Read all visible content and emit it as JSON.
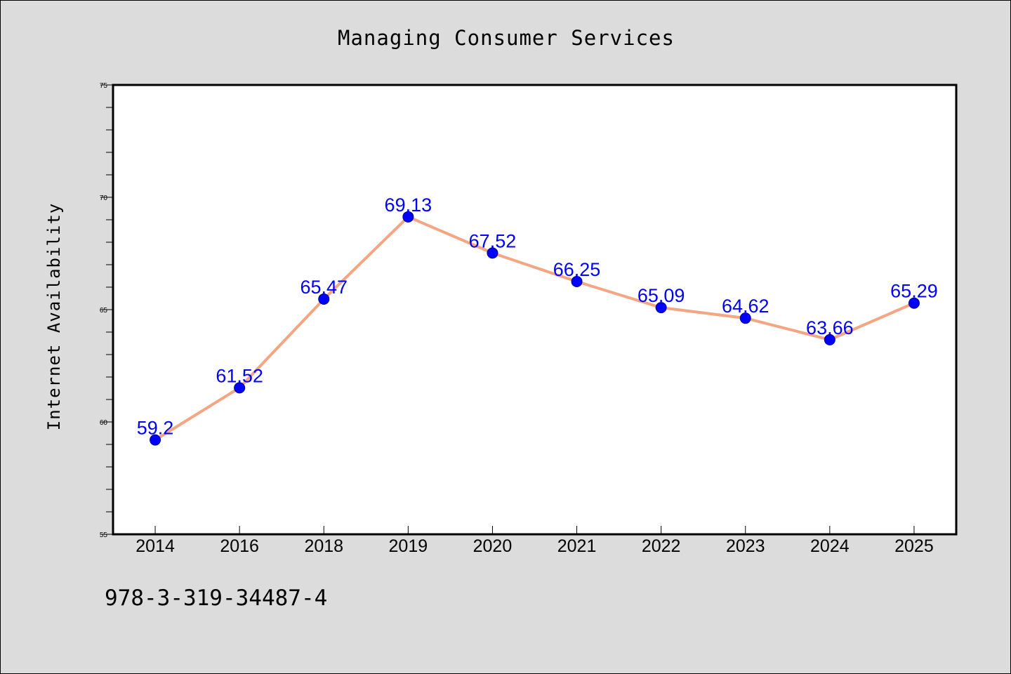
{
  "chart_data": {
    "type": "line",
    "title": "Managing Consumer Services",
    "xlabel": "",
    "ylabel": "Internet Availability",
    "categories": [
      "2014",
      "2016",
      "2018",
      "2019",
      "2020",
      "2021",
      "2022",
      "2023",
      "2024",
      "2025"
    ],
    "series": [
      {
        "values": [
          59.2,
          61.52,
          65.47,
          69.13,
          67.52,
          66.25,
          65.09,
          64.62,
          63.66,
          65.29
        ],
        "labels": [
          "59.2",
          "61.52",
          "65.47",
          "69.13",
          "67.52",
          "66.25",
          "65.09",
          "64.62",
          "63.66",
          "65.29"
        ]
      }
    ],
    "ylim": [
      55,
      75
    ],
    "yticks": [
      55,
      60,
      65,
      70,
      75
    ],
    "grid": false,
    "legend": "none",
    "colors": {
      "line": "#f4a582",
      "marker": "#0000ff",
      "label": "#0000ff",
      "background": "#dcdcdc",
      "plot_background": "#ffffff"
    }
  },
  "footer": {
    "isbn": "978-3-319-34487-4"
  }
}
